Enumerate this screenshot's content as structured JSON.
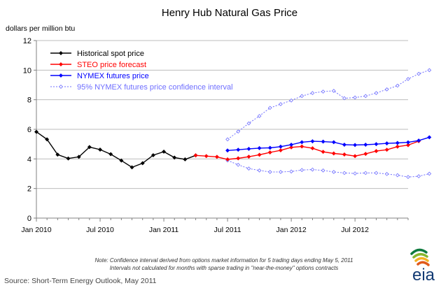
{
  "chart_data": {
    "type": "line",
    "title": "Henry Hub Natural Gas Price",
    "ylabel": "dollars per million btu",
    "xlabel": "",
    "ylim": [
      0,
      12
    ],
    "yticks": [
      0,
      2,
      4,
      6,
      8,
      10,
      12
    ],
    "xlim_months": [
      0,
      35
    ],
    "xticks": [
      {
        "month": 0,
        "label": "Jan 2010"
      },
      {
        "month": 6,
        "label": "Jul 2010"
      },
      {
        "month": 12,
        "label": "Jan 2011"
      },
      {
        "month": 18,
        "label": "Jul 2011"
      },
      {
        "month": 24,
        "label": "Jan 2012"
      },
      {
        "month": 30,
        "label": "Jul 2012"
      }
    ],
    "legend_position": "top-left",
    "series": [
      {
        "name": "Historical spot price",
        "color": "#000000",
        "style": "solid",
        "start_month": 0,
        "values": [
          5.83,
          5.32,
          4.29,
          4.03,
          4.14,
          4.8,
          4.63,
          4.32,
          3.89,
          3.43,
          3.71,
          4.25,
          4.49,
          4.09,
          3.97,
          4.24
        ]
      },
      {
        "name": "STEO price forecast",
        "color": "#ff0000",
        "style": "solid",
        "start_month": 15,
        "values": [
          4.24,
          4.19,
          4.14,
          3.97,
          4.04,
          4.15,
          4.28,
          4.44,
          4.58,
          4.78,
          4.84,
          4.72,
          4.48,
          4.37,
          4.3,
          4.19,
          4.34,
          4.53,
          4.62,
          4.83,
          4.93,
          5.2
        ]
      },
      {
        "name": "NYMEX futures price",
        "color": "#0000ff",
        "style": "solid",
        "start_month": 18,
        "values": [
          4.57,
          4.62,
          4.68,
          4.73,
          4.75,
          4.83,
          4.96,
          5.13,
          5.19,
          5.17,
          5.13,
          4.96,
          4.94,
          4.96,
          5.0,
          5.05,
          5.08,
          5.12,
          5.24,
          5.46
        ]
      },
      {
        "name": "95% NYMEX futures price confidence interval",
        "color": "#6f6fff",
        "style": "dotted",
        "start_month": 18,
        "upper": [
          5.32,
          5.85,
          6.4,
          6.9,
          7.45,
          7.7,
          7.95,
          8.25,
          8.45,
          8.55,
          8.6,
          8.1,
          8.15,
          8.25,
          8.45,
          8.7,
          8.95,
          9.4,
          9.75,
          10.0
        ],
        "lower": [
          3.9,
          3.6,
          3.35,
          3.22,
          3.12,
          3.12,
          3.15,
          3.25,
          3.28,
          3.22,
          3.12,
          3.05,
          3.02,
          3.05,
          3.05,
          2.98,
          2.9,
          2.78,
          2.83,
          3.0
        ]
      }
    ]
  },
  "notes": {
    "line1": "Note: Confidence interval derived from options market information for 5 trading days ending May 5, 2011",
    "line2": "Intervals not calculated for months with sparse trading in \"near-the-money\" options contracts"
  },
  "source": "Source: Short-Term Energy Outlook, May 2011",
  "logo": {
    "text": "eia"
  }
}
